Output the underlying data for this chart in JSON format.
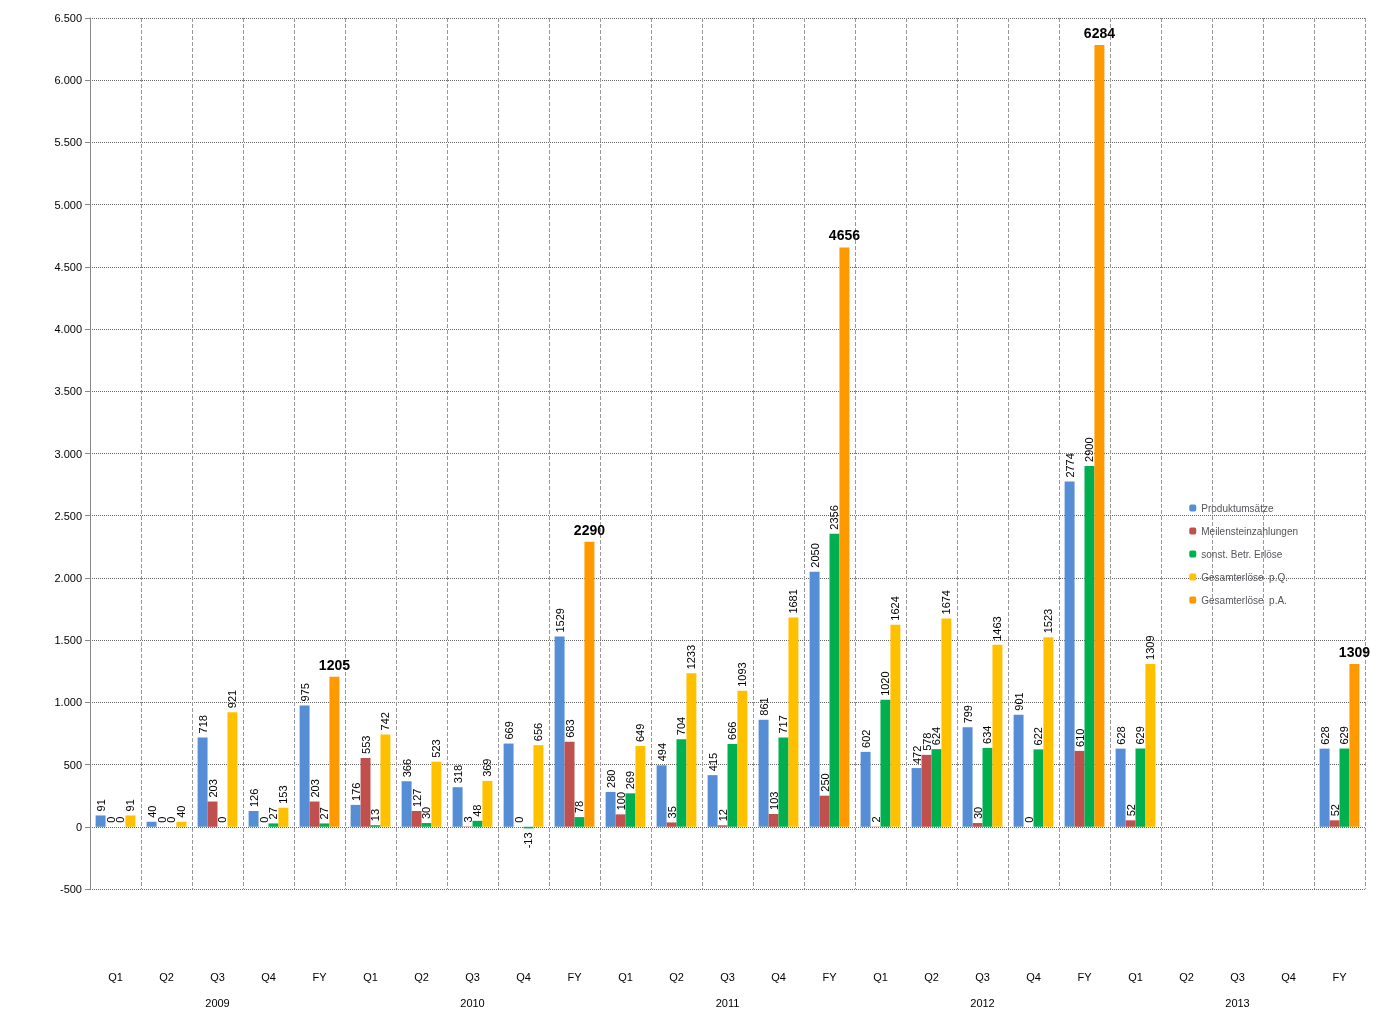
{
  "chart_data": {
    "type": "bar",
    "categories": [
      "Q1",
      "Q2",
      "Q3",
      "Q4",
      "FY",
      "Q1",
      "Q2",
      "Q3",
      "Q4",
      "FY",
      "Q1",
      "Q2",
      "Q3",
      "Q4",
      "FY",
      "Q1",
      "Q2",
      "Q3",
      "Q4",
      "FY",
      "Q1",
      "Q2",
      "Q3",
      "Q4",
      "FY"
    ],
    "series": [
      {
        "name": "Produktumsätze",
        "color": "#558ed5",
        "values": [
          91,
          40,
          718,
          126,
          975,
          176,
          366,
          318,
          669,
          1529,
          280,
          494,
          415,
          861,
          2050,
          602,
          472,
          799,
          901,
          2774,
          628,
          null,
          null,
          null,
          628
        ]
      },
      {
        "name": "Meilensteinzahlungen",
        "color": "#c0504d",
        "values": [
          0,
          0,
          203,
          0,
          203,
          553,
          127,
          3,
          0,
          683,
          100,
          35,
          12,
          103,
          250,
          2,
          578,
          30,
          0,
          610,
          52,
          null,
          null,
          null,
          52
        ]
      },
      {
        "name": "sonst. Betr. Erlöse",
        "color": "#00b050",
        "values": [
          0,
          0,
          0,
          27,
          27,
          13,
          30,
          48,
          -13,
          78,
          269,
          704,
          666,
          717,
          2356,
          1020,
          624,
          634,
          622,
          2900,
          629,
          null,
          null,
          null,
          629
        ]
      },
      {
        "name": "Gesamterlöse  p.Q.",
        "color": "#ffc000",
        "values": [
          91,
          40,
          921,
          153,
          null,
          742,
          523,
          369,
          656,
          null,
          649,
          1233,
          1093,
          1681,
          null,
          1624,
          1674,
          1463,
          1523,
          null,
          1309,
          null,
          null,
          null,
          null
        ]
      },
      {
        "name": "Gesamterlöse  p.A.",
        "color": "#ff9900",
        "values": [
          null,
          null,
          null,
          null,
          1205,
          null,
          null,
          null,
          null,
          2290,
          null,
          null,
          null,
          null,
          4656,
          null,
          null,
          null,
          null,
          6284,
          null,
          null,
          null,
          null,
          1309
        ]
      }
    ],
    "annotations": [
      "2009",
      "2010",
      "2011",
      "2012",
      "2013"
    ],
    "ylim": [
      -500,
      6500
    ],
    "yticks": [
      {
        "value": -500,
        "label": "-500"
      },
      0,
      500,
      {
        "value": 1000,
        "label": "1.000"
      },
      {
        "value": 1500,
        "label": "1.500"
      },
      {
        "value": 2000,
        "label": "2.000"
      },
      {
        "value": 2500,
        "label": "2.500"
      },
      {
        "value": 3000,
        "label": "3.000"
      },
      {
        "value": 3500,
        "label": "3.500"
      },
      {
        "value": 4000,
        "label": "4.000"
      },
      {
        "value": 4500,
        "label": "4.500"
      },
      {
        "value": 5000,
        "label": "5.000"
      },
      {
        "value": 5500,
        "label": "5.500"
      },
      {
        "value": 6000,
        "label": "6.000"
      },
      {
        "value": 6500,
        "label": "6.500"
      }
    ],
    "grid": true,
    "legend": "right",
    "data_labels": true
  }
}
